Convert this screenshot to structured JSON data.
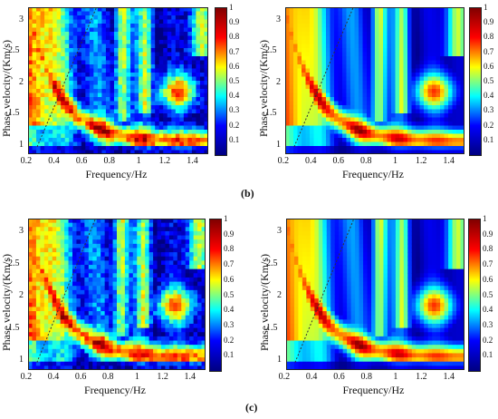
{
  "panel_labels": {
    "b": "(b)",
    "c": "(c)"
  },
  "colorbar": {
    "ticks": [
      "1",
      "0.9",
      "0.8",
      "0.7",
      "0.6",
      "0.5",
      "0.4",
      "0.3",
      "0.2",
      "0.1"
    ],
    "range": [
      0,
      1
    ],
    "colormap": [
      "#000080",
      "#0000ff",
      "#00ffff",
      "#ffff00",
      "#ff0000",
      "#800000"
    ]
  },
  "chart_data": [
    {
      "type": "heatmap",
      "title": "",
      "xlabel": "Frequency/Hz",
      "ylabel": "Phase velocity/(Km/s)",
      "xlim": [
        0.2,
        1.5
      ],
      "ylim": [
        0.85,
        3.2
      ],
      "xticks": [
        "0.2",
        "0.4",
        "0.6",
        "0.8",
        "1",
        "1.2",
        "1.4"
      ],
      "yticks": [
        "3",
        "2.5",
        "2",
        "1.5",
        "1"
      ],
      "zlim": [
        0,
        1
      ],
      "variant": "noisy"
    },
    {
      "type": "heatmap",
      "title": "",
      "xlabel": "Frequency/Hz",
      "ylabel": "Phase velocity/(Km/s)",
      "xlim": [
        0.2,
        1.5
      ],
      "ylim": [
        0.85,
        3.2
      ],
      "xticks": [
        "0.2",
        "0.4",
        "0.6",
        "0.8",
        "1",
        "1.2",
        "1.4"
      ],
      "yticks": [
        "3",
        "2.5",
        "2",
        "1.5",
        "1"
      ],
      "zlim": [
        0,
        1
      ],
      "variant": "clean"
    },
    {
      "type": "heatmap",
      "title": "",
      "xlabel": "Frequency/Hz",
      "ylabel": "Phase velocity/(Km/s)",
      "xlim": [
        0.2,
        1.5
      ],
      "ylim": [
        0.85,
        3.2
      ],
      "xticks": [
        "0.2",
        "0.4",
        "0.6",
        "0.8",
        "1",
        "1.2",
        "1.4"
      ],
      "yticks": [
        "3",
        "2.5",
        "2",
        "1.5",
        "1"
      ],
      "zlim": [
        0,
        1
      ],
      "variant": "noisy"
    },
    {
      "type": "heatmap",
      "title": "",
      "xlabel": "Frequency/Hz",
      "ylabel": "Phase velocity/(Km/s)",
      "xlim": [
        0.2,
        1.5
      ],
      "ylim": [
        0.85,
        3.2
      ],
      "xticks": [
        "0.2",
        "0.4",
        "0.6",
        "0.8",
        "1",
        "1.2",
        "1.4"
      ],
      "yticks": [
        "3",
        "2.5",
        "2",
        "1.5",
        "1"
      ],
      "zlim": [
        0,
        1
      ],
      "variant": "clean"
    }
  ]
}
